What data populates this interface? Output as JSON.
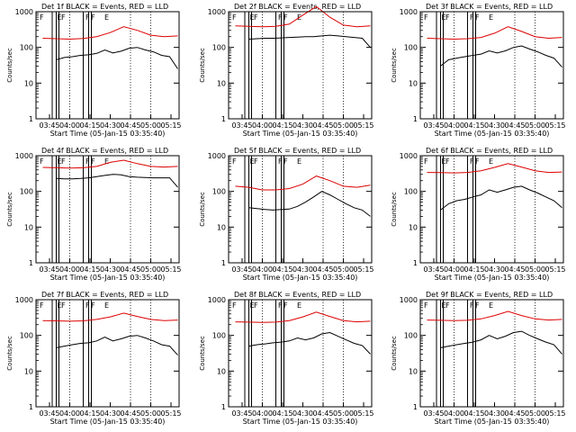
{
  "chart_data": [
    {
      "type": "line",
      "title": "Det 1f  BLACK = Events, RED = LLD",
      "xlabel": "Start Time (05-Jan-15 03:35:40)",
      "ylabel": "Counts/sec",
      "xticks": [
        "03:45",
        "04:00",
        "04:15",
        "04:30",
        "04:45",
        "05:00",
        "05:15"
      ],
      "yticks": [
        "1",
        "10",
        "100",
        "1000"
      ],
      "ylim": [
        1,
        1000
      ],
      "yscale": "log",
      "flags": [
        "F",
        "E",
        "F",
        "F",
        "F",
        "E"
      ],
      "series": [
        {
          "name": "BLACK = Events",
          "color": "#000000",
          "x_min": [
            5,
            11,
            17,
            23,
            29,
            35,
            41,
            47,
            53,
            59,
            65,
            71,
            77,
            83,
            89,
            95
          ],
          "y": [
            45,
            52,
            55,
            60,
            62,
            68,
            85,
            70,
            78,
            95,
            100,
            85,
            75,
            60,
            55,
            25
          ]
        },
        {
          "name": "RED = LLD",
          "color": "#dd0000",
          "x_min": [
            -5,
            5,
            15,
            25,
            35,
            45,
            55,
            65,
            75,
            85,
            95
          ],
          "y": [
            180,
            175,
            170,
            178,
            200,
            260,
            380,
            300,
            220,
            200,
            210
          ]
        }
      ]
    },
    {
      "type": "line",
      "title": "Det 2f  BLACK = Events, RED = LLD",
      "xlabel": "Start Time (05-Jan-15 03:35:40)",
      "ylabel": "Counts/sec",
      "xticks": [
        "03:45",
        "04:00",
        "04:15",
        "04:30",
        "04:45",
        "05:00",
        "05:15"
      ],
      "yticks": [
        "1",
        "10",
        "100",
        "1000"
      ],
      "ylim": [
        1,
        1000
      ],
      "yscale": "log",
      "flags": [
        "F",
        "E",
        "F",
        "F",
        "F",
        "E"
      ],
      "series": [
        {
          "name": "BLACK = Events",
          "color": "#000000",
          "x_min": [
            5,
            11,
            17,
            23,
            29,
            35,
            41,
            47,
            53,
            59,
            65,
            71,
            77,
            83,
            89,
            95
          ],
          "y": [
            170,
            175,
            180,
            180,
            185,
            190,
            195,
            200,
            200,
            210,
            220,
            210,
            200,
            190,
            180,
            100
          ]
        },
        {
          "name": "RED = LLD",
          "color": "#dd0000",
          "x_min": [
            -5,
            5,
            15,
            25,
            35,
            45,
            55,
            65,
            75,
            85,
            95
          ],
          "y": [
            400,
            390,
            380,
            390,
            450,
            800,
            1400,
            700,
            420,
            380,
            400
          ]
        }
      ]
    },
    {
      "type": "line",
      "title": "Det 3f  BLACK = Events, RED = LLD",
      "xlabel": "Start Time (05-Jan-15 03:35:40)",
      "ylabel": "Counts/sec",
      "xticks": [
        "03:45",
        "04:00",
        "04:15",
        "04:30",
        "04:45",
        "05:00",
        "05:15"
      ],
      "yticks": [
        "1",
        "10",
        "100",
        "1000"
      ],
      "ylim": [
        1,
        1000
      ],
      "yscale": "log",
      "flags": [
        "F",
        "E",
        "F",
        "F",
        "F",
        "E"
      ],
      "series": [
        {
          "name": "BLACK = Events",
          "color": "#000000",
          "x_min": [
            5,
            11,
            17,
            23,
            29,
            35,
            41,
            47,
            53,
            59,
            65,
            71,
            77,
            83,
            89,
            95
          ],
          "y": [
            30,
            45,
            50,
            55,
            60,
            65,
            80,
            70,
            80,
            100,
            110,
            90,
            75,
            60,
            50,
            28
          ]
        },
        {
          "name": "RED = LLD",
          "color": "#dd0000",
          "x_min": [
            -5,
            5,
            15,
            25,
            35,
            45,
            55,
            65,
            75,
            85,
            95
          ],
          "y": [
            180,
            175,
            170,
            175,
            190,
            250,
            380,
            280,
            200,
            180,
            190
          ]
        }
      ]
    },
    {
      "type": "line",
      "title": "Det 4f  BLACK = Events, RED = LLD",
      "xlabel": "Start Time (05-Jan-15 03:35:40)",
      "ylabel": "Counts/sec",
      "xticks": [
        "03:45",
        "04:00",
        "04:15",
        "04:30",
        "04:45",
        "05:00",
        "05:15"
      ],
      "yticks": [
        "1",
        "10",
        "100",
        "1000"
      ],
      "ylim": [
        1,
        1000
      ],
      "yscale": "log",
      "flags": [
        "F",
        "E",
        "F",
        "F",
        "F",
        "E"
      ],
      "series": [
        {
          "name": "BLACK = Events",
          "color": "#000000",
          "x_min": [
            5,
            11,
            17,
            23,
            29,
            35,
            41,
            47,
            53,
            59,
            65,
            71,
            77,
            83,
            89,
            95
          ],
          "y": [
            230,
            225,
            225,
            230,
            240,
            260,
            280,
            300,
            290,
            260,
            250,
            245,
            240,
            240,
            240,
            130
          ]
        },
        {
          "name": "RED = LLD",
          "color": "#dd0000",
          "x_min": [
            -5,
            5,
            15,
            25,
            35,
            45,
            55,
            65,
            75,
            85,
            95
          ],
          "y": [
            470,
            460,
            450,
            460,
            500,
            650,
            750,
            600,
            500,
            480,
            500
          ]
        }
      ]
    },
    {
      "type": "line",
      "title": "Det 5f  BLACK = Events, RED = LLD",
      "xlabel": "Start Time (05-Jan-15 03:35:40)",
      "ylabel": "Counts/sec",
      "xticks": [
        "03:45",
        "04:00",
        "04:15",
        "04:30",
        "04:45",
        "05:00",
        "05:15"
      ],
      "yticks": [
        "1",
        "10",
        "100",
        "1000"
      ],
      "ylim": [
        1,
        1000
      ],
      "yscale": "log",
      "flags": [
        "F",
        "E",
        "F",
        "F",
        "F",
        "E"
      ],
      "series": [
        {
          "name": "BLACK = Events",
          "color": "#000000",
          "x_min": [
            5,
            11,
            17,
            23,
            29,
            35,
            41,
            47,
            53,
            59,
            65,
            71,
            77,
            83,
            89,
            95
          ],
          "y": [
            35,
            33,
            31,
            30,
            31,
            32,
            38,
            50,
            70,
            100,
            80,
            60,
            45,
            35,
            30,
            20
          ]
        },
        {
          "name": "RED = LLD",
          "color": "#dd0000",
          "x_min": [
            -5,
            5,
            15,
            25,
            35,
            45,
            55,
            65,
            75,
            85,
            95
          ],
          "y": [
            140,
            130,
            110,
            110,
            120,
            160,
            270,
            200,
            140,
            130,
            150
          ]
        }
      ]
    },
    {
      "type": "line",
      "title": "Det 6f  BLACK = Events, RED = LLD",
      "xlabel": "Start Time (05-Jan-15 03:35:40)",
      "ylabel": "Counts/sec",
      "xticks": [
        "03:45",
        "04:00",
        "04:15",
        "04:30",
        "04:45",
        "05:00",
        "05:15"
      ],
      "yticks": [
        "1",
        "10",
        "100",
        "1000"
      ],
      "ylim": [
        1,
        1000
      ],
      "yscale": "log",
      "flags": [
        "F",
        "E",
        "F",
        "F",
        "F",
        "E"
      ],
      "series": [
        {
          "name": "BLACK = Events",
          "color": "#000000",
          "x_min": [
            5,
            11,
            17,
            23,
            29,
            35,
            41,
            47,
            53,
            59,
            65,
            71,
            77,
            83,
            89,
            95
          ],
          "y": [
            30,
            45,
            55,
            60,
            70,
            80,
            110,
            95,
            110,
            130,
            140,
            110,
            90,
            70,
            55,
            35
          ]
        },
        {
          "name": "RED = LLD",
          "color": "#dd0000",
          "x_min": [
            -5,
            5,
            15,
            25,
            35,
            45,
            55,
            65,
            75,
            85,
            95
          ],
          "y": [
            340,
            335,
            330,
            340,
            380,
            470,
            600,
            480,
            380,
            340,
            350
          ]
        }
      ]
    },
    {
      "type": "line",
      "title": "Det 7f  BLACK = Events, RED = LLD",
      "xlabel": "Start Time (05-Jan-15 03:35:40)",
      "ylabel": "Counts/sec",
      "xticks": [
        "03:45",
        "04:00",
        "04:15",
        "04:30",
        "04:45",
        "05:00",
        "05:15"
      ],
      "yticks": [
        "1",
        "10",
        "100",
        "1000"
      ],
      "ylim": [
        1,
        1000
      ],
      "yscale": "log",
      "flags": [
        "F",
        "E",
        "F",
        "F",
        "F",
        "E"
      ],
      "series": [
        {
          "name": "BLACK = Events",
          "color": "#000000",
          "x_min": [
            5,
            11,
            17,
            23,
            29,
            35,
            41,
            47,
            53,
            59,
            65,
            71,
            77,
            83,
            89,
            95
          ],
          "y": [
            45,
            50,
            55,
            60,
            62,
            70,
            90,
            70,
            80,
            95,
            100,
            85,
            70,
            55,
            50,
            28
          ]
        },
        {
          "name": "RED = LLD",
          "color": "#dd0000",
          "x_min": [
            -5,
            5,
            15,
            25,
            35,
            45,
            55,
            65,
            75,
            85,
            95
          ],
          "y": [
            260,
            255,
            250,
            255,
            280,
            330,
            420,
            340,
            280,
            260,
            270
          ]
        }
      ]
    },
    {
      "type": "line",
      "title": "Det 8f  BLACK = Events, RED = LLD",
      "xlabel": "Start Time (05-Jan-15 03:35:40)",
      "ylabel": "Counts/sec",
      "xticks": [
        "03:45",
        "04:00",
        "04:15",
        "04:30",
        "04:45",
        "05:00",
        "05:15"
      ],
      "yticks": [
        "1",
        "10",
        "100",
        "1000"
      ],
      "ylim": [
        1,
        1000
      ],
      "yscale": "log",
      "flags": [
        "F",
        "E",
        "F",
        "F",
        "F",
        "E"
      ],
      "series": [
        {
          "name": "BLACK = Events",
          "color": "#000000",
          "x_min": [
            5,
            11,
            17,
            23,
            29,
            35,
            41,
            47,
            53,
            59,
            65,
            71,
            77,
            83,
            89,
            95
          ],
          "y": [
            50,
            55,
            58,
            62,
            65,
            70,
            85,
            75,
            85,
            110,
            120,
            95,
            75,
            60,
            52,
            30
          ]
        },
        {
          "name": "RED = LLD",
          "color": "#dd0000",
          "x_min": [
            -5,
            5,
            15,
            25,
            35,
            45,
            55,
            65,
            75,
            85,
            95
          ],
          "y": [
            240,
            235,
            230,
            235,
            260,
            330,
            450,
            340,
            260,
            240,
            250
          ]
        }
      ]
    },
    {
      "type": "line",
      "title": "Det 9f  BLACK = Events, RED = LLD",
      "xlabel": "Start Time (05-Jan-15 03:35:40)",
      "ylabel": "Counts/sec",
      "xticks": [
        "03:45",
        "04:00",
        "04:15",
        "04:30",
        "04:45",
        "05:00",
        "05:15"
      ],
      "yticks": [
        "1",
        "10",
        "100",
        "1000"
      ],
      "ylim": [
        1,
        1000
      ],
      "yscale": "log",
      "flags": [
        "F",
        "E",
        "F",
        "F",
        "F",
        "E"
      ],
      "series": [
        {
          "name": "BLACK = Events",
          "color": "#000000",
          "x_min": [
            5,
            11,
            17,
            23,
            29,
            35,
            41,
            47,
            53,
            59,
            65,
            71,
            77,
            83,
            89,
            95
          ],
          "y": [
            45,
            50,
            55,
            60,
            65,
            75,
            100,
            80,
            95,
            120,
            130,
            100,
            80,
            65,
            55,
            30
          ]
        },
        {
          "name": "RED = LLD",
          "color": "#dd0000",
          "x_min": [
            -5,
            5,
            15,
            25,
            35,
            45,
            55,
            65,
            75,
            85,
            95
          ],
          "y": [
            270,
            265,
            260,
            265,
            290,
            360,
            470,
            360,
            290,
            270,
            280
          ]
        }
      ]
    }
  ]
}
